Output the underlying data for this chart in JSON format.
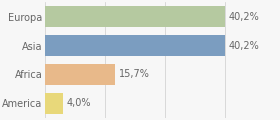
{
  "categories": [
    "Europa",
    "Asia",
    "Africa",
    "America"
  ],
  "values": [
    40.2,
    40.2,
    15.7,
    4.0
  ],
  "labels": [
    "40,2%",
    "40,2%",
    "15,7%",
    "4,0%"
  ],
  "bar_colors": [
    "#b5c9a0",
    "#7b9dc0",
    "#e8b98a",
    "#e8d87a"
  ],
  "background_color": "#f7f7f7",
  "figsize": [
    2.8,
    1.2
  ],
  "dpi": 100,
  "xlim": [
    0,
    52
  ],
  "bar_height": 0.72,
  "label_fontsize": 7.0,
  "tick_fontsize": 7.0,
  "grid_color": "#cccccc",
  "text_color": "#666666"
}
